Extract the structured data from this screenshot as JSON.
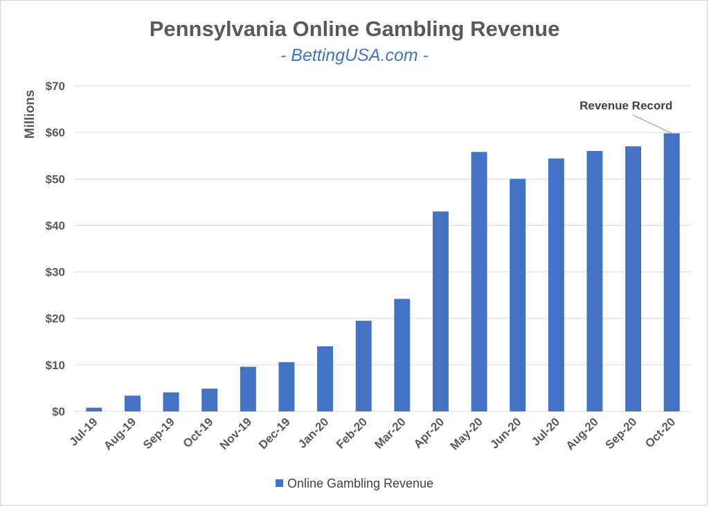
{
  "chart_data": {
    "type": "bar",
    "title": "Pennsylvania Online Gambling Revenue",
    "subtitle": "- BettingUSA.com -",
    "ylabel": "Millions",
    "xlabel": "",
    "ylim": [
      0,
      70
    ],
    "yticks": [
      0,
      10,
      20,
      30,
      40,
      50,
      60,
      70
    ],
    "ytick_labels": [
      "$0",
      "$10",
      "$20",
      "$30",
      "$40",
      "$50",
      "$60",
      "$70"
    ],
    "grid": true,
    "legend_position": "bottom",
    "categories": [
      "Jul-19",
      "Aug-19",
      "Sep-19",
      "Oct-19",
      "Nov-19",
      "Dec-19",
      "Jan-20",
      "Feb-20",
      "Mar-20",
      "Apr-20",
      "May-20",
      "Jun-20",
      "Jul-20",
      "Aug-20",
      "Sep-20",
      "Oct-20"
    ],
    "series": [
      {
        "name": "Online Gambling Revenue",
        "color": "#4472c4",
        "values": [
          0.8,
          3.4,
          4.1,
          4.9,
          9.6,
          10.6,
          14.0,
          19.5,
          24.2,
          43.0,
          55.8,
          50.0,
          54.4,
          56.0,
          57.0,
          59.8
        ]
      }
    ],
    "annotations": [
      {
        "text": "Revenue Record",
        "category": "Oct-20"
      }
    ]
  },
  "colors": {
    "bar": "#4472c4",
    "grid": "#d9d9d9",
    "text": "#595959",
    "subtitle": "#4472c4"
  }
}
